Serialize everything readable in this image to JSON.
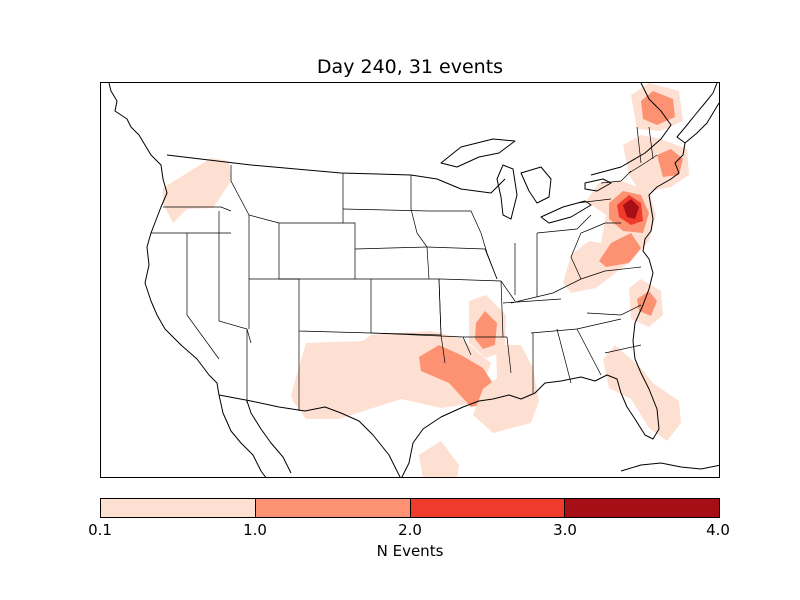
{
  "title": "Day 240, 31 events",
  "map": {
    "projection": "lambert-conformal",
    "region": "contiguous-united-states",
    "basemap_lines": [
      "coastlines",
      "country-borders",
      "state-borders"
    ]
  },
  "heatmap_bins": [
    {
      "range": [
        0.1,
        1.0
      ],
      "color": "#fee0d2"
    },
    {
      "range": [
        1.0,
        2.0
      ],
      "color": "#fc9272"
    },
    {
      "range": [
        2.0,
        3.0
      ],
      "color": "#ef3b2c"
    },
    {
      "range": [
        3.0,
        4.0
      ],
      "color": "#a50f15"
    }
  ],
  "colorbar": {
    "ticks": [
      "0.1",
      "1.0",
      "2.0",
      "3.0",
      "4.0"
    ],
    "label": "N Events",
    "colors": [
      "#fee0d2",
      "#fc9272",
      "#ef3b2c",
      "#a50f15"
    ]
  },
  "event_regions": [
    {
      "region": "Pacific Northwest (OR/WA)",
      "bin": 1
    },
    {
      "region": "New Mexico / West Texas",
      "bin": 1
    },
    {
      "region": "Oklahoma / North Texas",
      "bin": 2
    },
    {
      "region": "Arkansas",
      "bin": 2
    },
    {
      "region": "Louisiana / Mississippi",
      "bin": 1
    },
    {
      "region": "South Texas",
      "bin": 1
    },
    {
      "region": "Florida",
      "bin": 1
    },
    {
      "region": "North Carolina coast",
      "bin": 2
    },
    {
      "region": "Virginia / West Virginia",
      "bin": 2
    },
    {
      "region": "Maryland / Delaware / New Jersey",
      "bin": 4
    },
    {
      "region": "Massachusetts / Rhode Island",
      "bin": 2
    },
    {
      "region": "Maine / Quebec",
      "bin": 2
    }
  ]
}
